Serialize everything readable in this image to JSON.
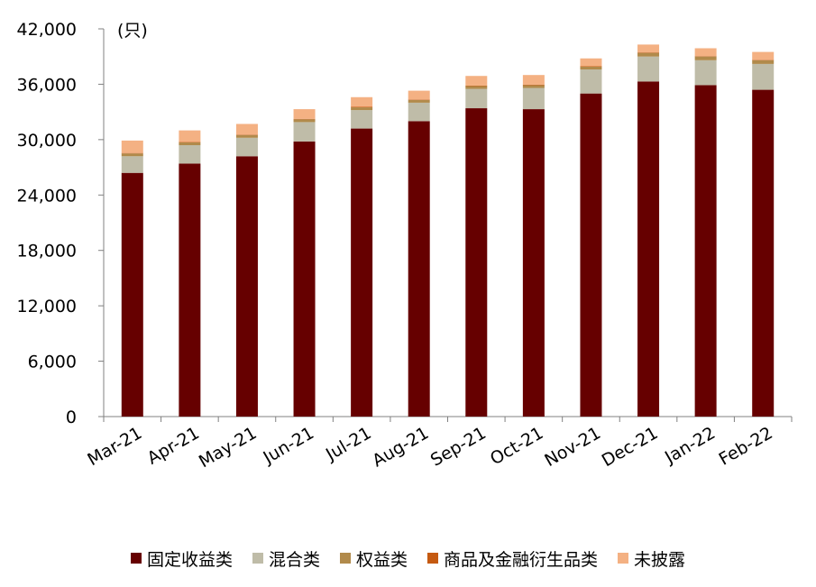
{
  "chart_data": {
    "type": "bar",
    "stacked": true,
    "unit_label": "(只)",
    "categories": [
      "Mar-21",
      "Apr-21",
      "May-21",
      "Jun-21",
      "Jul-21",
      "Aug-21",
      "Sep-21",
      "Oct-21",
      "Nov-21",
      "Dec-21",
      "Jan-22",
      "Feb-22"
    ],
    "ylim": [
      0,
      42000
    ],
    "yticks": [
      "0",
      "6,000",
      "12,000",
      "18,000",
      "24,000",
      "30,000",
      "36,000",
      "42,000"
    ],
    "ytick_values": [
      0,
      6000,
      12000,
      18000,
      24000,
      30000,
      36000,
      42000
    ],
    "grid": false,
    "legend_position": "bottom",
    "series": [
      {
        "name": "固定收益类",
        "color": "#660000",
        "values": [
          26400,
          27400,
          28200,
          29800,
          31200,
          32000,
          33400,
          33300,
          35000,
          36300,
          35900,
          35400
        ]
      },
      {
        "name": "混合类",
        "color": "#BFBCA8",
        "values": [
          1800,
          2000,
          2000,
          2100,
          2000,
          2000,
          2100,
          2300,
          2600,
          2700,
          2700,
          2800
        ]
      },
      {
        "name": "权益类",
        "color": "#B18A4B",
        "values": [
          300,
          300,
          300,
          300,
          300,
          300,
          300,
          300,
          300,
          400,
          400,
          400
        ]
      },
      {
        "name": "商品及金融衍生品类",
        "color": "#C55A11",
        "values": [
          50,
          50,
          50,
          50,
          50,
          50,
          50,
          50,
          50,
          50,
          50,
          50
        ]
      },
      {
        "name": "未披露",
        "color": "#F4B183",
        "values": [
          1350,
          1250,
          1150,
          1050,
          1050,
          950,
          1050,
          1050,
          850,
          850,
          850,
          850
        ]
      }
    ]
  }
}
